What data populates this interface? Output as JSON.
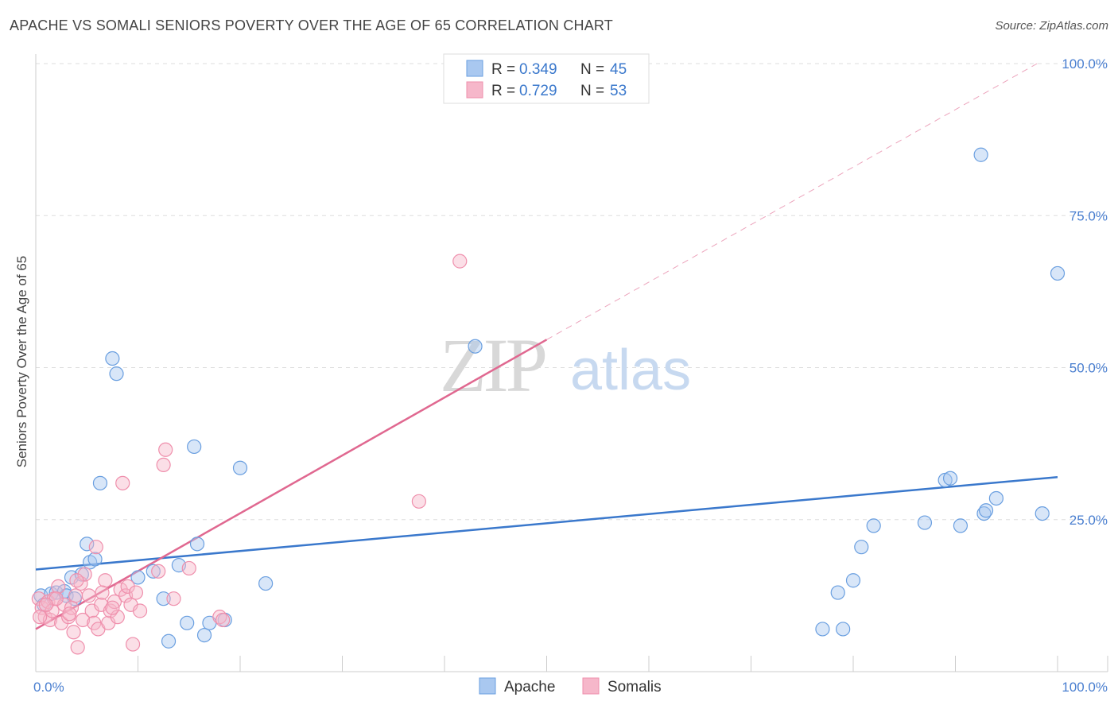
{
  "title": "APACHE VS SOMALI SENIORS POVERTY OVER THE AGE OF 65 CORRELATION CHART",
  "source": "Source: ZipAtlas.com",
  "watermark": {
    "zip": "ZIP",
    "atlas": "atlas"
  },
  "colors": {
    "apache_fill": "#a9c8f0",
    "apache_stroke": "#6a9fe0",
    "apache_line": "#3a78cc",
    "somali_fill": "#f6b7ca",
    "somali_stroke": "#ef8fac",
    "somali_line": "#e06890",
    "tick": "#4a7fd0",
    "grid": "#dddddd"
  },
  "legend_top": [
    {
      "r_label": "R = ",
      "r_value": "0.349",
      "n_label": "N = ",
      "n_value": "45",
      "series": "Apache"
    },
    {
      "r_label": "R = ",
      "r_value": "0.729",
      "n_label": "N = ",
      "n_value": "53",
      "series": "Somalis"
    }
  ],
  "chart_data": {
    "type": "scatter",
    "title": "APACHE VS SOMALI SENIORS POVERTY OVER THE AGE OF 65 CORRELATION CHART",
    "xlabel": "",
    "ylabel": "Seniors Poverty Over the Age of 65",
    "xlim": [
      0,
      100
    ],
    "ylim": [
      0,
      100
    ],
    "x_tick_labels": [
      {
        "value": 0,
        "label": "0.0%"
      },
      {
        "value": 100,
        "label": "100.0%"
      }
    ],
    "y_tick_labels": [
      {
        "value": 25,
        "label": "25.0%"
      },
      {
        "value": 50,
        "label": "50.0%"
      },
      {
        "value": 75,
        "label": "75.0%"
      },
      {
        "value": 100,
        "label": "100.0%"
      }
    ],
    "grid": true,
    "legend_position": "top-center",
    "series": [
      {
        "name": "Apache",
        "points": [
          [
            0.5,
            12.5
          ],
          [
            0.8,
            11.0
          ],
          [
            1.5,
            12.8
          ],
          [
            2.0,
            13.0
          ],
          [
            2.8,
            13.2
          ],
          [
            3.0,
            12.5
          ],
          [
            3.5,
            15.5
          ],
          [
            3.8,
            12.0
          ],
          [
            4.5,
            16.0
          ],
          [
            5.0,
            21.0
          ],
          [
            5.3,
            18.0
          ],
          [
            5.8,
            18.5
          ],
          [
            6.3,
            31.0
          ],
          [
            7.5,
            51.5
          ],
          [
            7.9,
            49.0
          ],
          [
            10.0,
            15.5
          ],
          [
            11.5,
            16.5
          ],
          [
            12.5,
            12.0
          ],
          [
            13.0,
            5.0
          ],
          [
            14.0,
            17.5
          ],
          [
            14.8,
            8.0
          ],
          [
            15.5,
            37.0
          ],
          [
            15.8,
            21.0
          ],
          [
            16.5,
            6.0
          ],
          [
            17.0,
            8.0
          ],
          [
            18.5,
            8.5
          ],
          [
            20.0,
            33.5
          ],
          [
            22.5,
            14.5
          ],
          [
            43.0,
            53.5
          ],
          [
            77.0,
            7.0
          ],
          [
            78.5,
            13.0
          ],
          [
            79.0,
            7.0
          ],
          [
            80.0,
            15.0
          ],
          [
            80.8,
            20.5
          ],
          [
            82.0,
            24.0
          ],
          [
            87.0,
            24.5
          ],
          [
            89.0,
            31.5
          ],
          [
            89.5,
            31.8
          ],
          [
            90.5,
            24.0
          ],
          [
            92.5,
            85.0
          ],
          [
            92.8,
            26.0
          ],
          [
            93.0,
            26.5
          ],
          [
            94.0,
            28.5
          ],
          [
            98.5,
            26.0
          ],
          [
            100.0,
            65.5
          ]
        ]
      },
      {
        "name": "Somalis",
        "points": [
          [
            0.3,
            12.0
          ],
          [
            0.6,
            10.5
          ],
          [
            0.9,
            9.0
          ],
          [
            1.2,
            11.5
          ],
          [
            1.4,
            8.5
          ],
          [
            1.6,
            10.0
          ],
          [
            1.8,
            12.0
          ],
          [
            2.2,
            14.0
          ],
          [
            2.5,
            8.0
          ],
          [
            2.8,
            11.0
          ],
          [
            3.2,
            9.0
          ],
          [
            3.5,
            10.5
          ],
          [
            3.7,
            6.5
          ],
          [
            3.9,
            12.5
          ],
          [
            4.1,
            4.0
          ],
          [
            4.4,
            14.5
          ],
          [
            4.6,
            8.5
          ],
          [
            4.8,
            16.0
          ],
          [
            5.2,
            12.5
          ],
          [
            5.5,
            10.0
          ],
          [
            5.7,
            8.0
          ],
          [
            5.9,
            20.5
          ],
          [
            6.1,
            7.0
          ],
          [
            6.4,
            11.0
          ],
          [
            6.8,
            15.0
          ],
          [
            7.1,
            8.0
          ],
          [
            7.3,
            10.0
          ],
          [
            7.7,
            11.5
          ],
          [
            8.0,
            9.0
          ],
          [
            8.3,
            13.5
          ],
          [
            8.5,
            31.0
          ],
          [
            8.8,
            12.5
          ],
          [
            9.0,
            14.0
          ],
          [
            9.3,
            11.0
          ],
          [
            9.5,
            4.5
          ],
          [
            9.8,
            13.0
          ],
          [
            10.2,
            10.0
          ],
          [
            12.0,
            16.5
          ],
          [
            12.5,
            34.0
          ],
          [
            12.7,
            36.5
          ],
          [
            13.5,
            12.0
          ],
          [
            15.0,
            17.0
          ],
          [
            18.0,
            9.0
          ],
          [
            18.3,
            8.5
          ],
          [
            37.5,
            28.0
          ],
          [
            41.5,
            67.5
          ],
          [
            2.0,
            12.0
          ],
          [
            4.0,
            15.0
          ],
          [
            6.5,
            13.0
          ],
          [
            1.0,
            11.0
          ],
          [
            3.3,
            9.5
          ],
          [
            7.5,
            10.5
          ],
          [
            0.4,
            9.0
          ]
        ]
      }
    ],
    "trendlines": [
      {
        "series": "Apache",
        "x": [
          0,
          100
        ],
        "y": [
          16.8,
          32.0
        ],
        "style": "solid"
      },
      {
        "series": "Somalis",
        "x": [
          0,
          50
        ],
        "y": [
          7.0,
          54.6
        ],
        "style": "solid"
      },
      {
        "series": "Somalis",
        "x": [
          50,
          98
        ],
        "y": [
          54.6,
          100.0
        ],
        "style": "dashed"
      }
    ]
  }
}
